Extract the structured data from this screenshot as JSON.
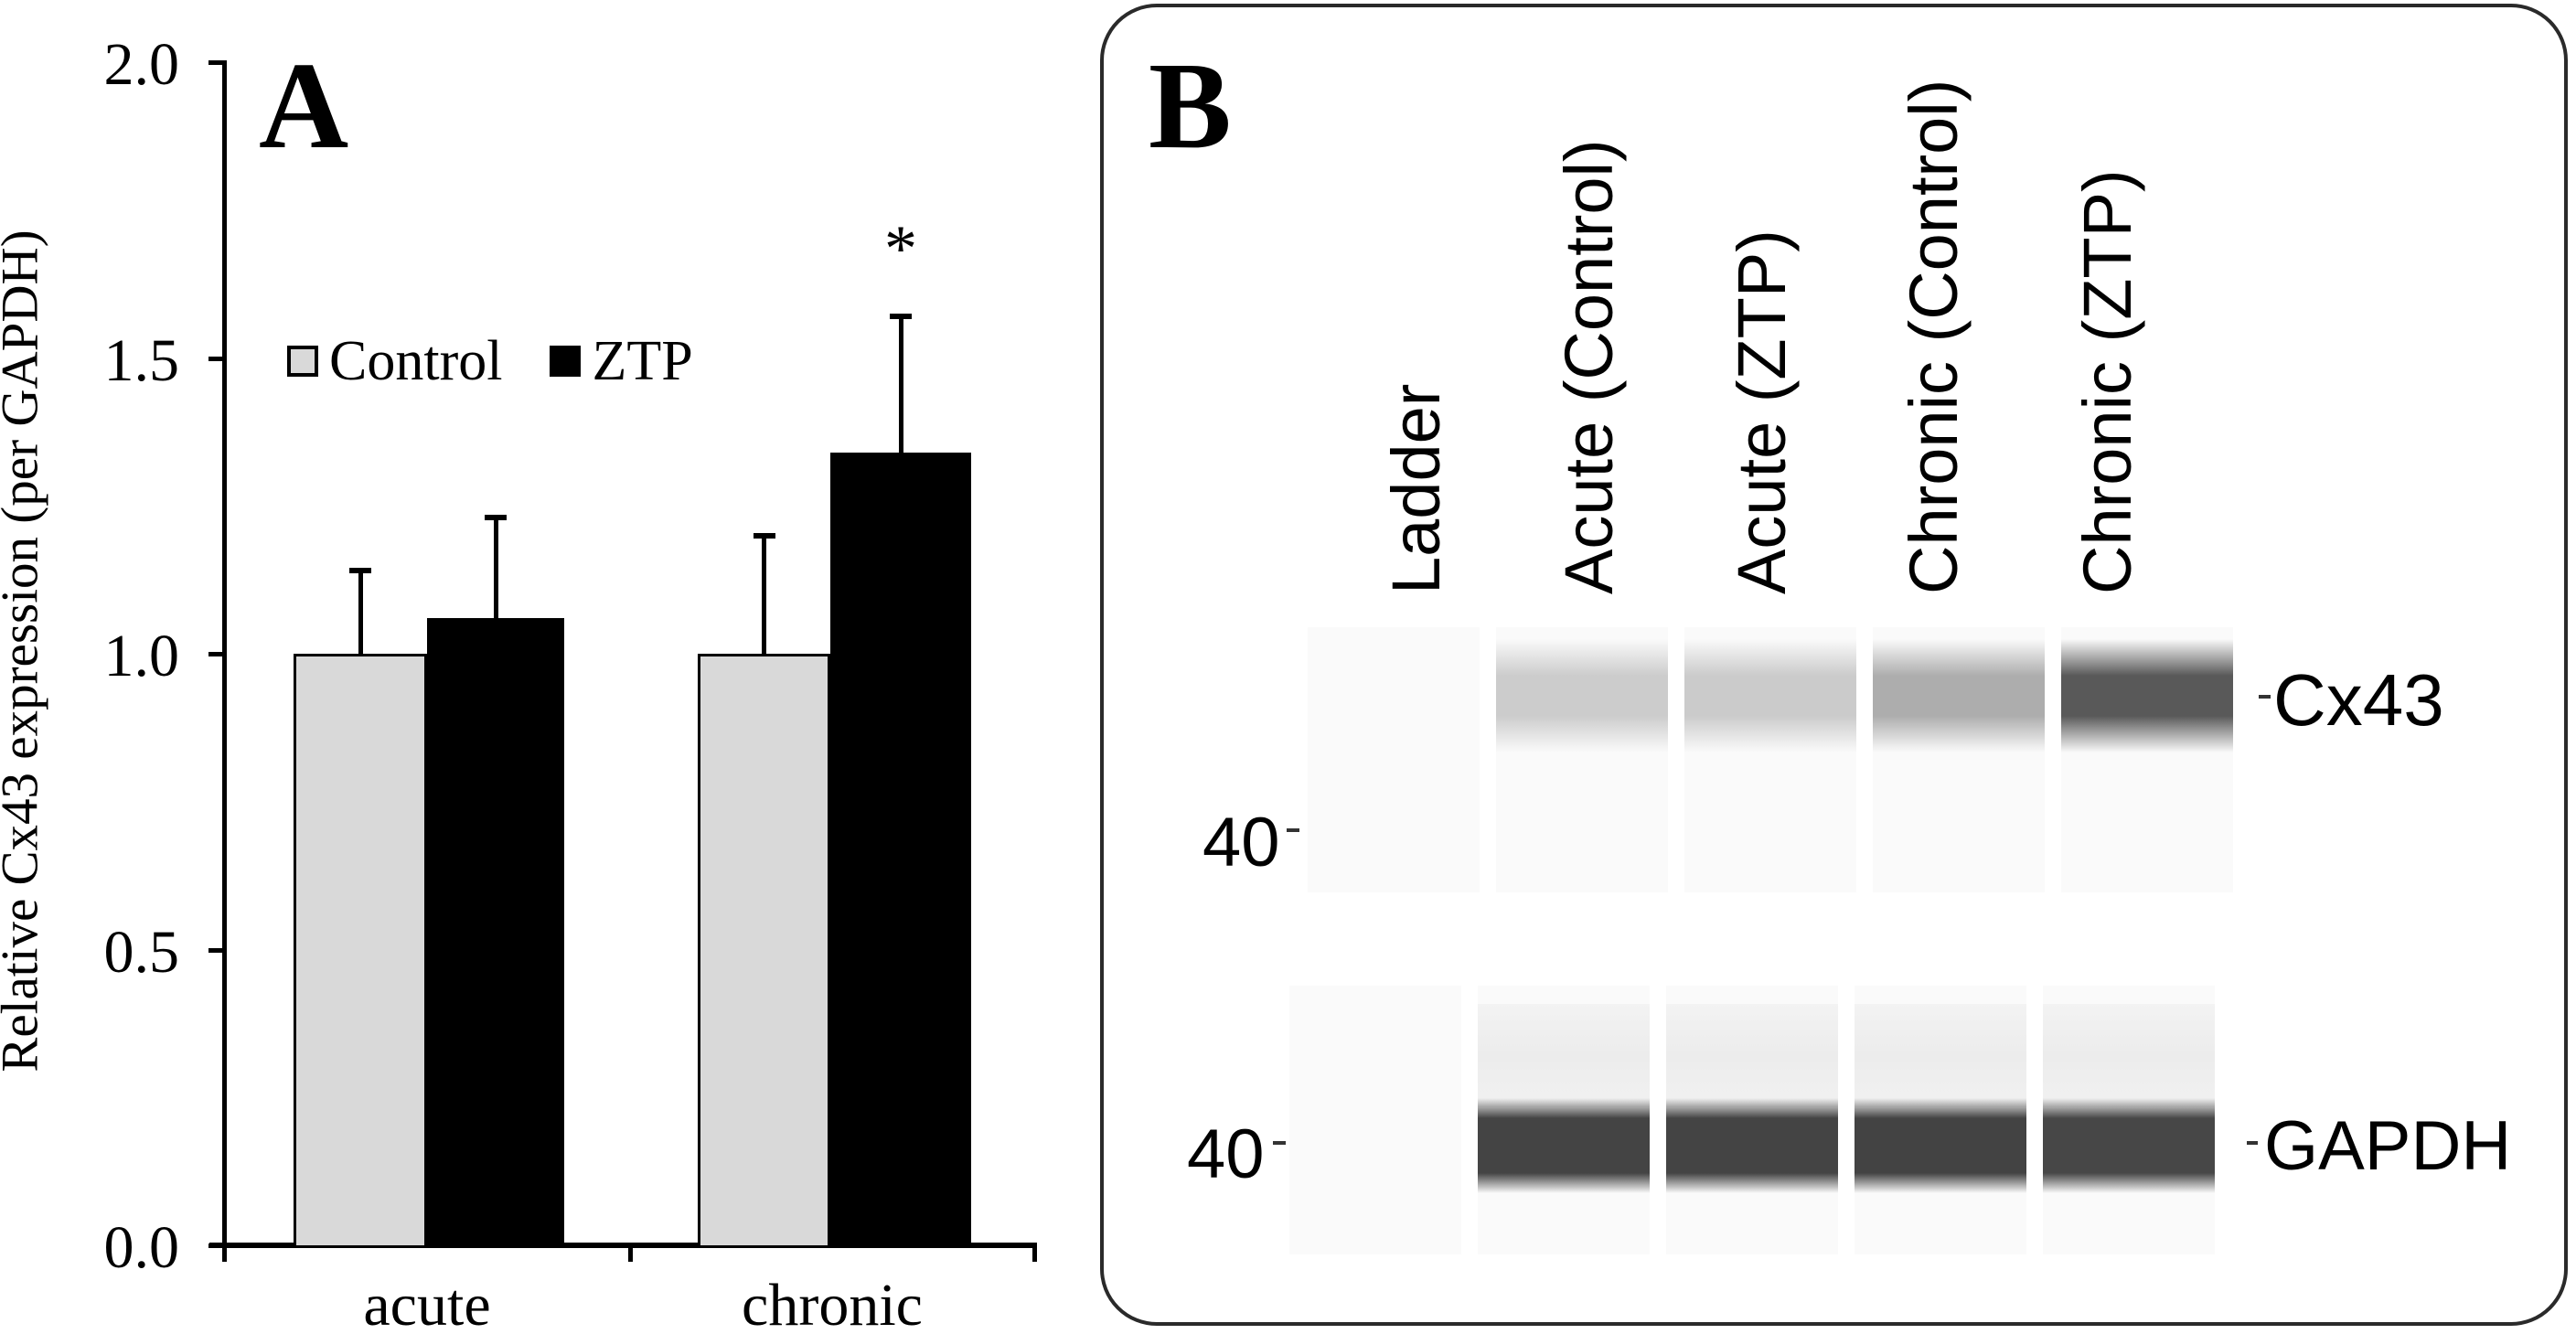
{
  "figure": {
    "panel_a": {
      "letter": "A",
      "y_axis_title": "Relative Cx43 expression (per GAPDH)",
      "y_ticks": [
        "2.0",
        "1.5",
        "1.0",
        "0.5",
        "0.0"
      ],
      "x_categories": [
        "acute",
        "chronic"
      ],
      "legend": [
        {
          "label": "Control",
          "color": "#d9d9d9"
        },
        {
          "label": "ZTP",
          "color": "#000000"
        }
      ],
      "significance_marker": "*"
    },
    "panel_b": {
      "letter": "B",
      "lane_labels": [
        "Ladder",
        "Acute (Control)",
        "Acute (ZTP)",
        "Chronic (Control)",
        "Chronic (ZTP)"
      ],
      "blots": [
        {
          "target": "Cx43",
          "ladder_marker": "40",
          "band_colors": [
            "none",
            "#cccccc",
            "#cbcbcb",
            "#adadad",
            "#595959"
          ]
        },
        {
          "target": "GAPDH",
          "ladder_marker": "40",
          "band_colors": [
            "none",
            "#444444",
            "#444444",
            "#434343",
            "#474747"
          ]
        }
      ]
    }
  },
  "chart_data": {
    "type": "bar",
    "title": "",
    "xlabel": "",
    "ylabel": "Relative Cx43 expression (per GAPDH)",
    "ylim": [
      0,
      2.0
    ],
    "yticks": [
      0.0,
      0.5,
      1.0,
      1.5,
      2.0
    ],
    "categories": [
      "acute",
      "chronic"
    ],
    "series": [
      {
        "name": "Control",
        "color": "#d9d9d9",
        "values": [
          1.0,
          1.0
        ],
        "error": [
          0.14,
          0.2
        ]
      },
      {
        "name": "ZTP",
        "color": "#000000",
        "values": [
          1.06,
          1.34
        ],
        "error": [
          0.17,
          0.23
        ]
      }
    ],
    "annotations": [
      {
        "text": "*",
        "category": "chronic",
        "series": "ZTP"
      }
    ],
    "legend_position": "upper-left inside",
    "grid": false
  }
}
